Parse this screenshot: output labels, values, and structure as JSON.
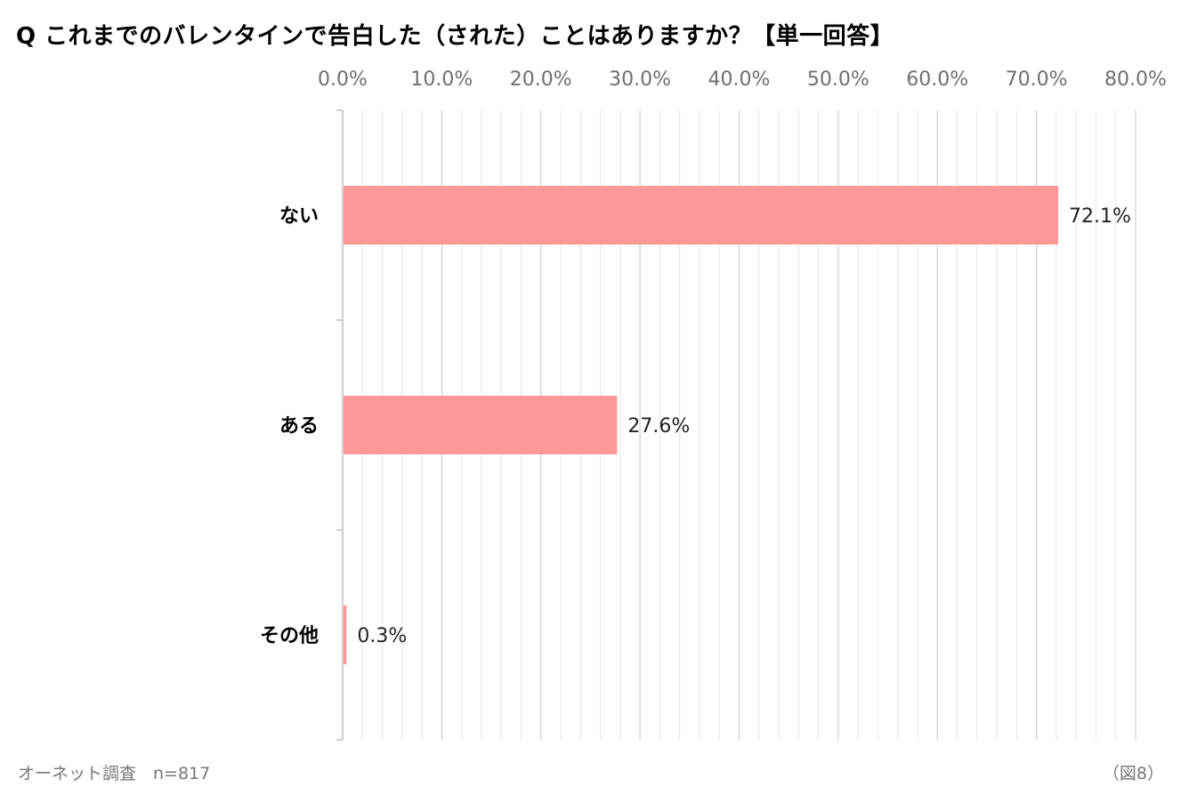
{
  "title": "Q これまでのバレンタインで告白した（された）ことはありますか？【単一回答】",
  "footer": {
    "source": "オーネット調査　n=817",
    "figure_no": "（図8）"
  },
  "colors": {
    "bar": "#ff9999",
    "gridMajor": "#cfcfcf",
    "gridMinor": "#e6e6e6",
    "axis": "#bfbfbf"
  },
  "chart_data": {
    "type": "bar",
    "orientation": "horizontal",
    "title": "Q これまでのバレンタインで告白した（された）ことはありますか？【単一回答】",
    "categories": [
      "ない",
      "ある",
      "その他"
    ],
    "values": [
      72.1,
      27.6,
      0.3
    ],
    "value_labels": [
      "72.1%",
      "27.6%",
      "0.3%"
    ],
    "xlim": [
      0,
      80
    ],
    "ticks": [
      0,
      10,
      20,
      30,
      40,
      50,
      60,
      70,
      80
    ],
    "tick_labels": [
      "0.0%",
      "10.0%",
      "20.0%",
      "30.0%",
      "40.0%",
      "50.0%",
      "60.0%",
      "70.0%",
      "80.0%"
    ],
    "minor_tick_step": 2,
    "axis_position": "top",
    "grid": true,
    "xlabel": "",
    "ylabel": ""
  }
}
